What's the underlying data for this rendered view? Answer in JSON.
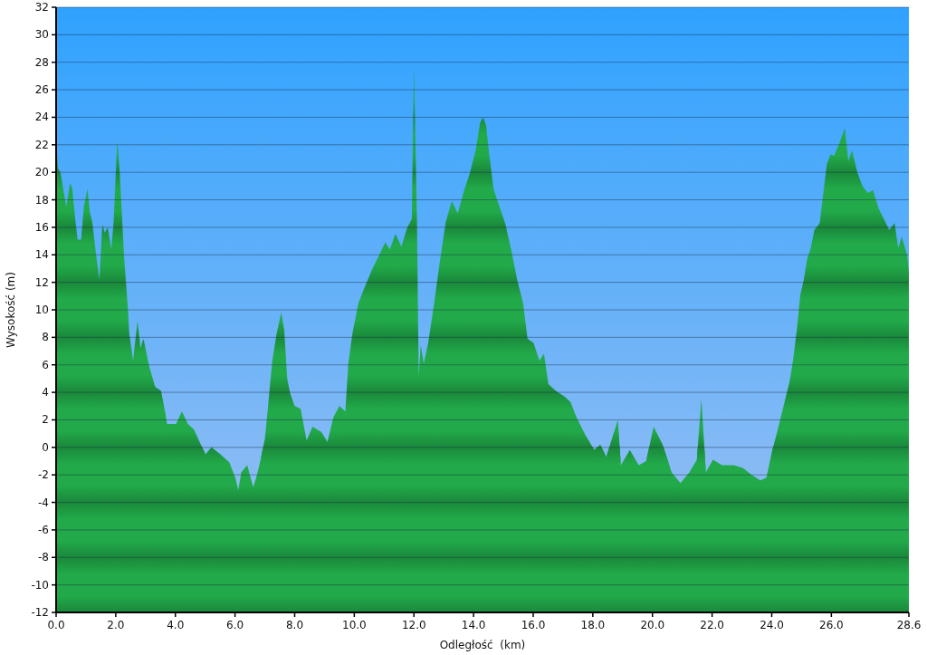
{
  "chart_data": {
    "type": "area",
    "xlabel": "Odległość  (km)",
    "ylabel": "Wysokość (m)",
    "x": [
      0,
      0.06,
      0.14,
      0.19,
      0.34,
      0.47,
      0.54,
      0.64,
      0.72,
      0.84,
      0.93,
      1.05,
      1.13,
      1.21,
      1.33,
      1.45,
      1.55,
      1.63,
      1.73,
      1.85,
      1.93,
      2.05,
      2.13,
      2.28,
      2.41,
      2.45,
      2.58,
      2.73,
      2.83,
      2.93,
      3.12,
      3.32,
      3.52,
      3.67,
      3.72,
      4.02,
      4.22,
      4.42,
      4.62,
      4.81,
      5.01,
      5.21,
      5.51,
      5.81,
      6.01,
      6.11,
      6.21,
      6.41,
      6.61,
      6.71,
      6.86,
      7.0,
      7.1,
      7.25,
      7.4,
      7.55,
      7.65,
      7.75,
      7.85,
      8.0,
      8.2,
      8.4,
      8.6,
      8.9,
      9.1,
      9.3,
      9.5,
      9.7,
      9.8,
      9.94,
      10.14,
      10.34,
      10.59,
      10.84,
      11.04,
      11.19,
      11.38,
      11.58,
      11.78,
      11.93,
      12.0,
      12.1,
      12.16,
      12.23,
      12.33,
      12.48,
      12.68,
      12.87,
      13.07,
      13.27,
      13.47,
      13.67,
      13.87,
      14.07,
      14.22,
      14.32,
      14.42,
      14.52,
      14.67,
      14.87,
      15.07,
      15.26,
      15.46,
      15.66,
      15.81,
      16.01,
      16.21,
      16.36,
      16.51,
      16.76,
      17.05,
      17.25,
      17.45,
      17.75,
      18.05,
      18.25,
      18.45,
      18.84,
      18.94,
      19.24,
      19.54,
      19.79,
      20.04,
      20.34,
      20.64,
      20.94,
      21.24,
      21.49,
      21.64,
      21.79,
      22.03,
      22.33,
      22.73,
      23.03,
      23.33,
      23.62,
      23.82,
      24.02,
      24.18,
      24.42,
      24.6,
      24.72,
      24.84,
      24.96,
      25.07,
      25.19,
      25.31,
      25.43,
      25.61,
      25.73,
      25.85,
      25.97,
      26.09,
      26.27,
      26.45,
      26.57,
      26.69,
      26.87,
      27.04,
      27.22,
      27.4,
      27.58,
      27.76,
      27.94,
      28.12,
      28.24,
      28.36,
      28.54,
      28.6
    ],
    "values": [
      22.7,
      20.3,
      20.0,
      19.4,
      17.5,
      19.2,
      18.8,
      16.6,
      15.1,
      15.1,
      17.5,
      18.8,
      17.1,
      16.4,
      14.2,
      12.2,
      16.2,
      15.6,
      16.0,
      14.4,
      16.4,
      22.3,
      20.1,
      13.8,
      10.0,
      8.3,
      6.3,
      9.2,
      7.2,
      7.9,
      5.9,
      4.4,
      4.1,
      2.4,
      1.7,
      1.7,
      2.6,
      1.7,
      1.3,
      0.4,
      -0.5,
      0.0,
      -0.5,
      -1.1,
      -2.2,
      -3.1,
      -1.8,
      -1.3,
      -2.9,
      -2.2,
      -0.9,
      0.6,
      2.8,
      6.3,
      8.3,
      9.8,
      8.5,
      5.0,
      3.9,
      3.0,
      2.8,
      0.5,
      1.5,
      1.1,
      0.4,
      2.2,
      3.0,
      2.6,
      6.1,
      8.3,
      10.5,
      11.6,
      12.9,
      14.0,
      14.9,
      14.4,
      15.5,
      14.6,
      16.0,
      16.6,
      27.6,
      16.6,
      5.2,
      7.4,
      6.1,
      7.6,
      10.5,
      13.5,
      16.4,
      17.9,
      17.0,
      18.6,
      19.9,
      21.6,
      23.6,
      24.0,
      23.4,
      21.4,
      18.8,
      17.5,
      16.2,
      14.4,
      12.2,
      10.5,
      7.9,
      7.6,
      6.3,
      6.8,
      4.6,
      4.1,
      3.7,
      3.3,
      2.2,
      0.9,
      -0.2,
      0.2,
      -0.7,
      2.0,
      -1.3,
      -0.2,
      -1.3,
      -1.0,
      1.5,
      0.2,
      -1.8,
      -2.6,
      -1.8,
      -0.9,
      3.5,
      -1.8,
      -0.9,
      -1.3,
      -1.3,
      -1.5,
      -2.0,
      -2.4,
      -2.2,
      -0.2,
      1.1,
      3.2,
      4.8,
      6.4,
      8.5,
      11.1,
      12.1,
      13.7,
      14.5,
      15.8,
      16.3,
      18.5,
      20.6,
      21.3,
      21.2,
      22.1,
      23.2,
      20.8,
      21.6,
      20.0,
      19.0,
      18.5,
      18.7,
      17.4,
      16.6,
      15.8,
      16.3,
      14.5,
      15.3,
      14.0,
      12.7
    ],
    "color": "#22aa4a",
    "xlim": [
      0,
      28.6
    ],
    "xticks": [
      {
        "value": 0,
        "label": "0.0"
      },
      {
        "value": 2,
        "label": "2.0"
      },
      {
        "value": 4,
        "label": "4.0"
      },
      {
        "value": 6,
        "label": "6.0"
      },
      {
        "value": 8,
        "label": "8.0"
      },
      {
        "value": 10,
        "label": "10.0"
      },
      {
        "value": 12,
        "label": "12.0"
      },
      {
        "value": 14,
        "label": "14.0"
      },
      {
        "value": 16,
        "label": "16.0"
      },
      {
        "value": 18,
        "label": "18.0"
      },
      {
        "value": 20,
        "label": "20.0"
      },
      {
        "value": 22,
        "label": "22.0"
      },
      {
        "value": 24,
        "label": "24.0"
      },
      {
        "value": 26,
        "label": "26.0"
      },
      {
        "value": 28.6,
        "label": "28.6"
      }
    ],
    "ylim": [
      -12,
      32
    ],
    "yticks": [
      -12,
      -10,
      -8,
      -6,
      -4,
      -2,
      0,
      2,
      4,
      6,
      8,
      10,
      12,
      14,
      16,
      18,
      20,
      22,
      24,
      26,
      28,
      30,
      32
    ],
    "grid": "y"
  }
}
